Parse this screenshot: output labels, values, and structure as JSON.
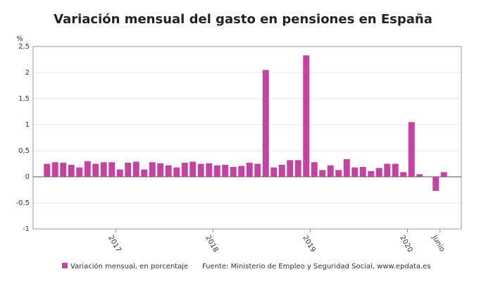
{
  "chart_data": {
    "type": "bar",
    "title": "Variación mensual del gasto en pensiones en España",
    "y_unit": "%",
    "legend_label": "Variación mensual, en porcentaje",
    "source": "Fuente: Ministerio de Empleo y Seguridad Social, www.epdata.es",
    "color": "#c0459f",
    "categories": [
      null,
      null,
      null,
      null,
      null,
      null,
      null,
      null,
      null,
      "2017",
      null,
      null,
      null,
      null,
      null,
      null,
      null,
      null,
      null,
      null,
      null,
      "2018",
      null,
      null,
      null,
      null,
      null,
      null,
      null,
      null,
      null,
      null,
      null,
      "2019",
      null,
      null,
      null,
      null,
      null,
      null,
      null,
      null,
      null,
      null,
      null,
      "2020",
      null,
      null,
      null,
      "Junio"
    ],
    "values": [
      0.25,
      0.28,
      0.27,
      0.23,
      0.18,
      0.3,
      0.25,
      0.28,
      0.28,
      0.14,
      0.27,
      0.29,
      0.14,
      0.28,
      0.26,
      0.22,
      0.18,
      0.27,
      0.29,
      0.25,
      0.26,
      0.22,
      0.23,
      0.19,
      0.21,
      0.27,
      0.25,
      2.05,
      0.18,
      0.23,
      0.32,
      0.32,
      2.33,
      0.28,
      0.13,
      0.22,
      0.13,
      0.34,
      0.18,
      0.19,
      0.11,
      0.17,
      0.25,
      0.25,
      0.09,
      1.05,
      0.05,
      0,
      -0.27,
      0.09
    ],
    "ylim": [
      -1,
      2.5
    ],
    "yticks": [
      {
        "value": -1,
        "label": "-1"
      },
      {
        "value": -0.5,
        "label": "-0,5"
      },
      0,
      {
        "value": 0.5,
        "label": "0,5"
      },
      1,
      {
        "value": 1.5,
        "label": "1,5"
      },
      2,
      {
        "value": 2.5,
        "label": "2,5"
      }
    ],
    "grid": true
  }
}
